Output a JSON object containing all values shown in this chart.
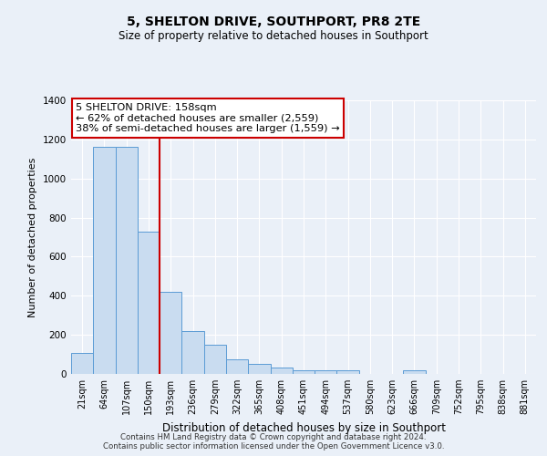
{
  "title": "5, SHELTON DRIVE, SOUTHPORT, PR8 2TE",
  "subtitle": "Size of property relative to detached houses in Southport",
  "xlabel": "Distribution of detached houses by size in Southport",
  "ylabel": "Number of detached properties",
  "bar_labels": [
    "21sqm",
    "64sqm",
    "107sqm",
    "150sqm",
    "193sqm",
    "236sqm",
    "279sqm",
    "322sqm",
    "365sqm",
    "408sqm",
    "451sqm",
    "494sqm",
    "537sqm",
    "580sqm",
    "623sqm",
    "666sqm",
    "709sqm",
    "752sqm",
    "795sqm",
    "838sqm",
    "881sqm"
  ],
  "bar_values": [
    108,
    1160,
    1160,
    730,
    420,
    220,
    150,
    75,
    50,
    35,
    20,
    18,
    18,
    0,
    0,
    18,
    0,
    0,
    0,
    0,
    0
  ],
  "bar_color": "#c9dcf0",
  "bar_edge_color": "#5b9bd5",
  "vline_color": "#cc0000",
  "vline_pos": 3.5,
  "annotation_title": "5 SHELTON DRIVE: 158sqm",
  "annotation_line1": "← 62% of detached houses are smaller (2,559)",
  "annotation_line2": "38% of semi-detached houses are larger (1,559) →",
  "annotation_box_color": "#ffffff",
  "annotation_box_edge": "#cc0000",
  "ylim": [
    0,
    1400
  ],
  "yticks": [
    0,
    200,
    400,
    600,
    800,
    1000,
    1200,
    1400
  ],
  "footer1": "Contains HM Land Registry data © Crown copyright and database right 2024.",
  "footer2": "Contains public sector information licensed under the Open Government Licence v3.0.",
  "bg_color": "#eaf0f8",
  "plot_bg_color": "#eaf0f8",
  "grid_color": "#ffffff"
}
